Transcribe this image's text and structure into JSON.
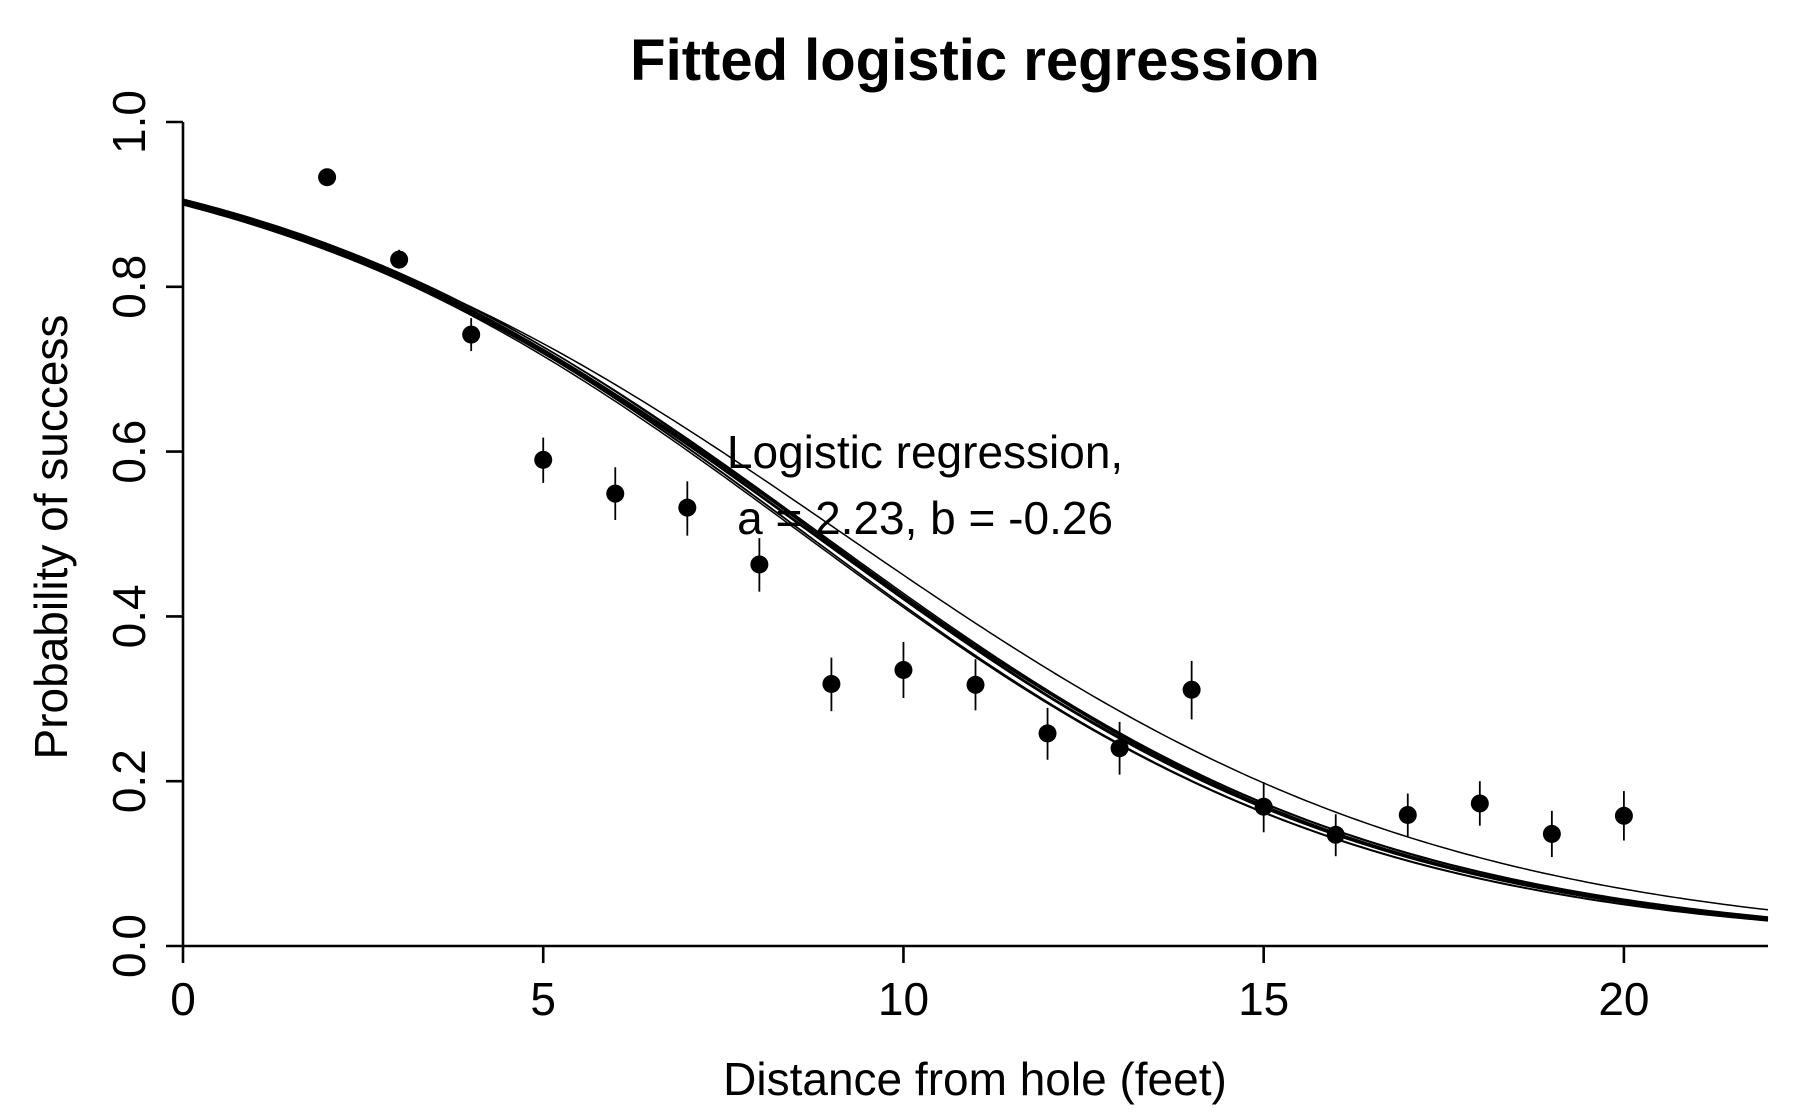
{
  "chart_data": {
    "type": "scatter",
    "title": "Fitted logistic regression",
    "xlabel": "Distance from hole (feet)",
    "ylabel": "Probability of success",
    "xlim": [
      0,
      22
    ],
    "ylim": [
      0,
      1.0
    ],
    "x_ticks": [
      0,
      5,
      10,
      15,
      20
    ],
    "x_tick_labels": [
      "0",
      "5",
      "10",
      "15",
      "20"
    ],
    "y_ticks": [
      0.0,
      0.2,
      0.4,
      0.6,
      0.8,
      1.0
    ],
    "y_tick_labels": [
      "0.0",
      "0.2",
      "0.4",
      "0.6",
      "0.8",
      "1.0"
    ],
    "grid": false,
    "points": [
      {
        "x": 2,
        "y": 0.933,
        "low": 0.933,
        "high": 0.933
      },
      {
        "x": 3,
        "y": 0.833,
        "low": 0.822,
        "high": 0.845
      },
      {
        "x": 4,
        "y": 0.742,
        "low": 0.722,
        "high": 0.762
      },
      {
        "x": 5,
        "y": 0.59,
        "low": 0.562,
        "high": 0.617
      },
      {
        "x": 6,
        "y": 0.549,
        "low": 0.517,
        "high": 0.581
      },
      {
        "x": 7,
        "y": 0.532,
        "low": 0.498,
        "high": 0.564
      },
      {
        "x": 8,
        "y": 0.463,
        "low": 0.43,
        "high": 0.495
      },
      {
        "x": 9,
        "y": 0.318,
        "low": 0.285,
        "high": 0.35
      },
      {
        "x": 10,
        "y": 0.335,
        "low": 0.301,
        "high": 0.369
      },
      {
        "x": 11,
        "y": 0.317,
        "low": 0.286,
        "high": 0.348
      },
      {
        "x": 12,
        "y": 0.258,
        "low": 0.226,
        "high": 0.289
      },
      {
        "x": 13,
        "y": 0.24,
        "low": 0.208,
        "high": 0.272
      },
      {
        "x": 14,
        "y": 0.311,
        "low": 0.275,
        "high": 0.346
      },
      {
        "x": 15,
        "y": 0.169,
        "low": 0.138,
        "high": 0.199
      },
      {
        "x": 16,
        "y": 0.135,
        "low": 0.109,
        "high": 0.16
      },
      {
        "x": 17,
        "y": 0.159,
        "low": 0.133,
        "high": 0.185
      },
      {
        "x": 18,
        "y": 0.173,
        "low": 0.146,
        "high": 0.2
      },
      {
        "x": 19,
        "y": 0.136,
        "low": 0.108,
        "high": 0.164
      },
      {
        "x": 20,
        "y": 0.158,
        "low": 0.128,
        "high": 0.188
      }
    ],
    "fitted_curves": [
      {
        "a": 2.23,
        "b": -0.255
      },
      {
        "a": 2.22,
        "b": -0.254
      },
      {
        "a": 2.24,
        "b": -0.256
      },
      {
        "a": 2.21,
        "b": -0.253
      },
      {
        "a": 2.25,
        "b": -0.257
      },
      {
        "a": 2.23,
        "b": -0.258
      },
      {
        "a": 2.22,
        "b": -0.252
      },
      {
        "a": 2.24,
        "b": -0.259
      },
      {
        "a": 2.26,
        "b": -0.256
      },
      {
        "a": 2.2,
        "b": -0.251
      },
      {
        "a": 2.23,
        "b": -0.255
      },
      {
        "a": 2.25,
        "b": -0.254
      },
      {
        "a": 2.21,
        "b": -0.257
      },
      {
        "a": 2.27,
        "b": -0.258
      },
      {
        "a": 2.19,
        "b": -0.25
      },
      {
        "a": 2.2,
        "b": -0.24
      }
    ],
    "annotations": [
      {
        "text": "Logistic regression,",
        "x": 10.3,
        "y": 0.58
      },
      {
        "text": "a = 2.23, b = -0.26",
        "x": 10.3,
        "y": 0.5
      }
    ]
  }
}
